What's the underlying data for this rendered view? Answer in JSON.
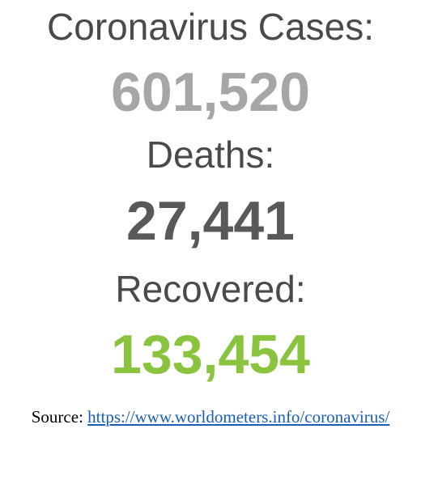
{
  "stats": {
    "cases": {
      "label": "Coronavirus Cases:",
      "value": "601,520",
      "color": "#a6a6a6"
    },
    "deaths": {
      "label": "Deaths:",
      "value": "27,441",
      "color": "#595959"
    },
    "recovered": {
      "label": "Recovered:",
      "value": "133,454",
      "color": "#8ac43f"
    }
  },
  "source": {
    "prefix": "Source:",
    "link_text": "https://www.worldometers.info/coronavirus/",
    "link_href": "https://www.worldometers.info/coronavirus/"
  }
}
